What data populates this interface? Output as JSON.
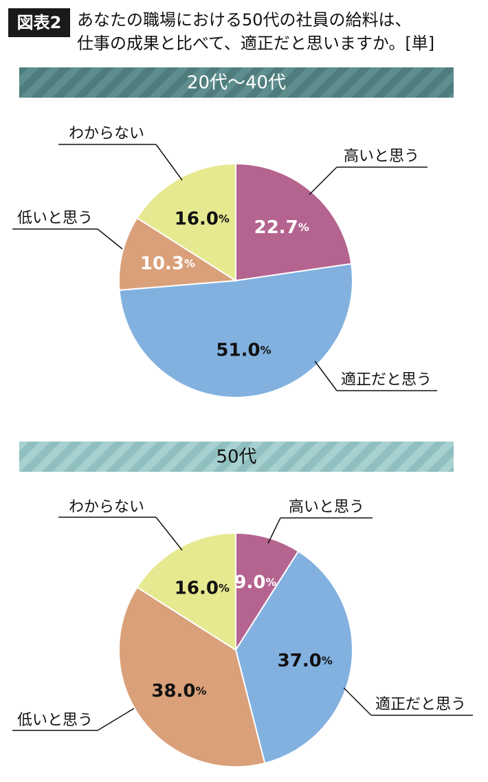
{
  "figure_label": "図表2",
  "title_lines": [
    "あなたの職場における50代の社員の給料は、",
    "仕事の成果と比べて、適正だと思いますか。[単]"
  ],
  "chart_data": [
    {
      "type": "pie",
      "title": "20代～40代",
      "categories": [
        "高いと思う",
        "適正だと思う",
        "低いと思う",
        "わからない"
      ],
      "values": [
        22.7,
        51.0,
        10.3,
        16.0
      ],
      "value_labels": [
        "22.7%",
        "51.0%",
        "10.3%",
        "16.0%"
      ],
      "colors": [
        "#b5648f",
        "#82b1e0",
        "#d9a07a",
        "#e6e98f"
      ],
      "value_label_colors": [
        "#ffffff",
        "#111111",
        "#ffffff",
        "#111111"
      ]
    },
    {
      "type": "pie",
      "title": "50代",
      "categories": [
        "高いと思う",
        "適正だと思う",
        "低いと思う",
        "わからない"
      ],
      "values": [
        9.0,
        37.0,
        38.0,
        16.0
      ],
      "value_labels": [
        "9.0%",
        "37.0%",
        "38.0%",
        "16.0%"
      ],
      "colors": [
        "#b5648f",
        "#82b1e0",
        "#d9a07a",
        "#e6e98f"
      ],
      "value_label_colors": [
        "#ffffff",
        "#111111",
        "#111111",
        "#111111"
      ]
    }
  ]
}
